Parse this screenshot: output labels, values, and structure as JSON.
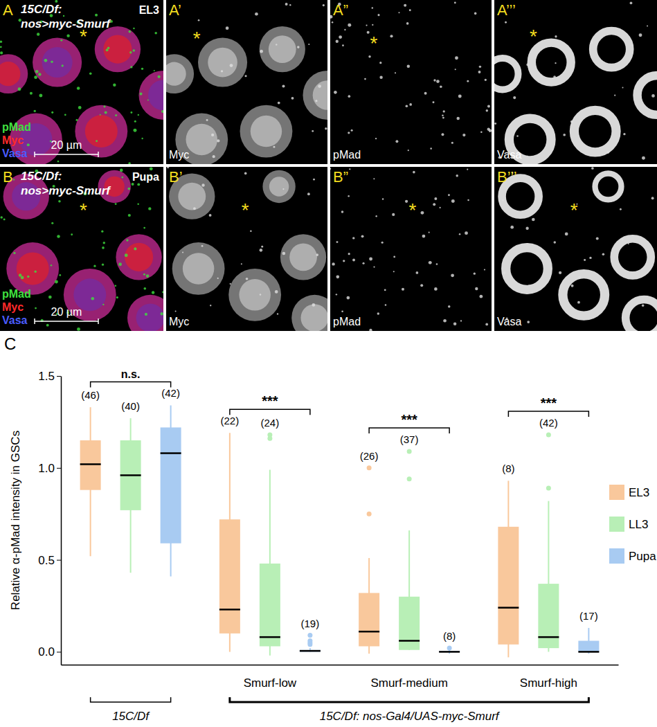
{
  "panels": [
    {
      "letter": "A",
      "genotype": [
        "15C/Df:",
        "nos>myc-Smurf"
      ],
      "stage": "EL3",
      "marker": "*",
      "channels": [
        {
          "name": "pMad",
          "color": "#3fe03f"
        },
        {
          "name": "Myc",
          "color": "#ff2a2a"
        },
        {
          "name": "Vasa",
          "color": "#4a5cff"
        }
      ],
      "scale_bar": "20 µm"
    },
    {
      "letter": "A’",
      "channel": "Myc",
      "marker": "*"
    },
    {
      "letter": "A”",
      "channel": "pMad",
      "marker": "*"
    },
    {
      "letter": "A’’’",
      "channel": "Vasa",
      "marker": "*"
    },
    {
      "letter": "B",
      "genotype": [
        "15C/Df:",
        "nos>myc-Smurf"
      ],
      "stage": "Pupa",
      "marker": "*",
      "channels": [
        {
          "name": "pMad",
          "color": "#3fe03f"
        },
        {
          "name": "Myc",
          "color": "#ff2a2a"
        },
        {
          "name": "Vasa",
          "color": "#4a5cff"
        }
      ],
      "scale_bar": "20 µm"
    },
    {
      "letter": "B’",
      "channel": "Myc",
      "marker": "*"
    },
    {
      "letter": "B”",
      "channel": "pMad",
      "marker": "*"
    },
    {
      "letter": "B’’’",
      "channel": "Vasa",
      "marker": "*"
    }
  ],
  "chart_data": {
    "type": "box",
    "panel_label": "C",
    "y_label": "Relative α-pMad intensity in GSCs",
    "categories": [
      null,
      "Smurf-low",
      "Smurf-medium",
      "Smurf-high"
    ],
    "group_labels": [
      {
        "label": "15C/Df",
        "from": 0,
        "to": 0
      },
      {
        "label": "15C/Df: nos-Gal4/UAS-myc-Smurf",
        "from": 1,
        "to": 3
      }
    ],
    "significance": [
      "n.s.",
      "***",
      "***",
      "***"
    ],
    "ylim": [
      -0.07,
      1.5
    ],
    "yticks": [
      {
        "value": 0,
        "label": "0.0"
      },
      {
        "value": 0.5,
        "label": "0.5"
      },
      {
        "value": 1,
        "label": "1.0"
      },
      {
        "value": 1.5,
        "label": "1.5"
      }
    ],
    "legend": "right",
    "series": [
      {
        "name": "EL3",
        "color": "#f9c89c",
        "min": [
          0.52,
          0.0,
          -0.01,
          -0.03
        ],
        "q1": [
          0.88,
          0.1,
          0.03,
          0.04
        ],
        "median": [
          1.02,
          0.23,
          0.11,
          0.24
        ],
        "q3": [
          1.15,
          0.72,
          0.32,
          0.68
        ],
        "max": [
          1.33,
          1.19,
          0.51,
          0.93
        ],
        "outliers": [
          [],
          [],
          [
            1.0,
            0.75
          ],
          []
        ],
        "n_labels": [
          "(46)",
          "(22)",
          "(26)",
          "(8)"
        ]
      },
      {
        "name": "LL3",
        "color": "#b8efb6",
        "min": [
          0.43,
          -0.02,
          0.01,
          0.0
        ],
        "q1": [
          0.77,
          0.03,
          0.01,
          0.02
        ],
        "median": [
          0.96,
          0.08,
          0.06,
          0.08
        ],
        "q3": [
          1.15,
          0.48,
          0.3,
          0.37
        ],
        "max": [
          1.27,
          0.99,
          0.66,
          0.82
        ],
        "outliers": [
          [],
          [
            1.18,
            1.16
          ],
          [
            1.09,
            0.94
          ],
          [
            1.18,
            0.89
          ]
        ],
        "n_labels": [
          "(40)",
          "(24)",
          "(37)",
          "(42)"
        ]
      },
      {
        "name": "Pupa",
        "color": "#a8cbf2",
        "min": [
          0.41,
          0.0,
          -0.01,
          -0.01
        ],
        "q1": [
          0.59,
          0.0,
          0.0,
          0.0
        ],
        "median": [
          1.08,
          0.005,
          0.0,
          0.0
        ],
        "q3": [
          1.22,
          0.01,
          0.005,
          0.06
        ],
        "max": [
          1.34,
          0.02,
          0.01,
          0.13
        ],
        "outliers": [
          [],
          [
            0.09,
            0.06,
            0.05,
            0.04
          ],
          [
            0.02
          ],
          []
        ],
        "n_labels": [
          "(42)",
          "(19)",
          "(8)",
          "(17)"
        ]
      }
    ]
  }
}
